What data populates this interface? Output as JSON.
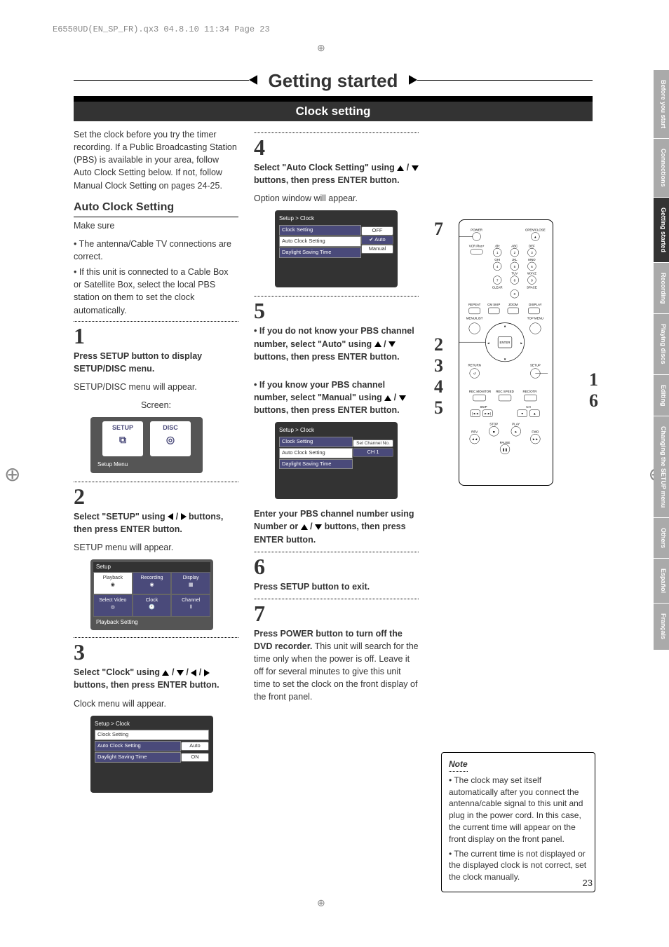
{
  "header_line": "E6550UD(EN_SP_FR).qx3  04.8.10  11:34  Page 23",
  "main_title": "Getting started",
  "sub_title": "Clock setting",
  "page_number": "23",
  "intro": "Set the clock before you try the timer recording. If a Public Broadcasting Station (PBS) is available in your area, follow Auto Clock Setting below. If not, follow Manual Clock Setting on pages 24-25.",
  "section_auto": "Auto Clock Setting",
  "makesure": "Make sure",
  "makesure_items": [
    "The antenna/Cable TV connections are correct.",
    "If this unit is connected to a Cable Box or Satellite Box, select the local PBS station on them to set the clock automatically."
  ],
  "step1": {
    "num": "1",
    "title": "Press SETUP button to display SETUP/DISC menu.",
    "body": "SETUP/DISC menu will appear.",
    "caption": "Screen:"
  },
  "menu1": {
    "t1": "SETUP",
    "t2": "DISC",
    "cap": "Setup Menu"
  },
  "step2": {
    "num": "2",
    "title_a": "Select \"SETUP\" using ",
    "title_b": " buttons, then press ENTER button.",
    "body": "SETUP menu will appear."
  },
  "menu2": {
    "hdr": "Setup",
    "cells": [
      "Playback",
      "Recording",
      "Display",
      "Select Video",
      "Clock",
      "Channel"
    ],
    "cap": "Playback Setting"
  },
  "step3": {
    "num": "3",
    "title_a": "Select \"Clock\" using ",
    "title_b": " buttons, then press ENTER button.",
    "body": "Clock menu will appear."
  },
  "menu3": {
    "crumb": "Setup > Clock",
    "rows": [
      {
        "lab": "Clock Setting",
        "val": ""
      },
      {
        "lab": "Auto Clock Setting",
        "val": "Auto"
      },
      {
        "lab": "Daylight Saving Time",
        "val": "ON"
      }
    ]
  },
  "step4": {
    "num": "4",
    "title_a": "Select \"Auto Clock Setting\" using ",
    "title_b": " buttons, then press ENTER button.",
    "body": "Option window will appear."
  },
  "menu4": {
    "crumb": "Setup > Clock",
    "rows": [
      "Clock Setting",
      "Auto Clock Setting",
      "Daylight Saving Time"
    ],
    "opts": [
      "OFF",
      "Auto",
      "Manual"
    ]
  },
  "step5": {
    "num": "5",
    "p1a": "If you do not know your PBS channel number, select \"Auto\" using ",
    "p1b": " buttons, then press ENTER button.",
    "p2a": "If you know your PBS channel number, select \"Manual\" using ",
    "p2b": " buttons, then press ENTER button."
  },
  "menu5": {
    "crumb": "Setup > Clock",
    "rows": [
      "Clock Setting",
      "Auto Clock Setting",
      "Daylight Saving Time"
    ],
    "pop_label": "Set Channel No.",
    "pop_val": "CH 1"
  },
  "step5_tail_a": "Enter your PBS channel number using Number or ",
  "step5_tail_b": " buttons, then press ENTER button.",
  "step6": {
    "num": "6",
    "title": "Press SETUP button to exit."
  },
  "step7": {
    "num": "7",
    "title_a": "Press POWER button to turn off the DVD recorder.",
    "body": " This unit will search for the time only when the power is off. Leave it off for several minutes to give this unit time to set the clock on the front display of the front panel."
  },
  "callouts_left": [
    "7",
    "2",
    "3",
    "4",
    "5"
  ],
  "callouts_right": [
    "1",
    "6"
  ],
  "remote_labels": {
    "power": "POWER",
    "open": "OPEN\nCLOSE",
    "vcrplus": "VCR Plus+",
    "keys": [
      "1",
      "2",
      "3",
      "4",
      "5",
      "6",
      "7",
      "8",
      "9",
      "0"
    ],
    "abc": [
      "@!:",
      "ABC",
      "DEF",
      "GHI",
      "JKL",
      "MNO",
      "TUV",
      "WXYZ"
    ],
    "clear": "CLEAR",
    "space": "SPACE",
    "row": [
      "REPEAT",
      "CM SKIP",
      "ZOOM",
      "DISPLAY"
    ],
    "menulist": "MENU/LIST",
    "topmenu": "TOP MENU",
    "enter": "ENTER",
    "return": "RETURN",
    "setup": "SETUP",
    "rec": [
      "REC MONITOR",
      "REC SPEED",
      "REC/OTR"
    ],
    "skip": "SKIP",
    "ch": "CH",
    "transport": [
      "REV",
      "STOP",
      "PLAY",
      "FWD",
      "PAUSE"
    ]
  },
  "note": {
    "hdr": "Note",
    "items": [
      "The clock may set itself automatically after you connect the antenna/cable signal to this unit and plug in the power cord. In this case, the current time will appear on the front display on the front panel.",
      "The current time is not displayed or the displayed clock is not correct, set the clock manually."
    ]
  },
  "tabs": [
    "Before you start",
    "Connections",
    "Getting started",
    "Recording",
    "Playing discs",
    "Editing",
    "Changing the SETUP menu",
    "Others",
    "Español",
    "Français"
  ],
  "tab_active_index": 2,
  "colors": {
    "accent": "#4a4a7a",
    "bar": "#333333",
    "tab_inactive": "#aaaaaa"
  }
}
